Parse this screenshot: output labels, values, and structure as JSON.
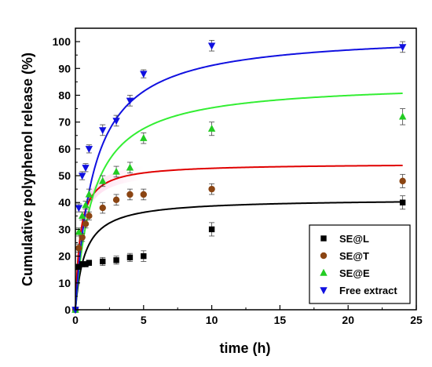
{
  "chart_data": {
    "type": "scatter",
    "title": "",
    "xlabel": "time (h)",
    "ylabel": "Cumulative polyphenol release (%)",
    "xlim": [
      0,
      25
    ],
    "ylim": [
      0,
      105
    ],
    "xticks": [
      0,
      5,
      10,
      15,
      20,
      25
    ],
    "yticks": [
      0,
      10,
      20,
      30,
      40,
      50,
      60,
      70,
      80,
      90,
      100
    ],
    "legend_position": "bottom-right",
    "grid": false,
    "series": [
      {
        "name": "SE@L",
        "color": "#000000",
        "marker": "square",
        "x": [
          0,
          0.25,
          0.5,
          0.75,
          1,
          2,
          3,
          4,
          5,
          10,
          24
        ],
        "y": [
          0,
          16,
          17,
          17,
          17.5,
          18,
          18.5,
          19.5,
          20,
          30,
          40
        ],
        "err": [
          0,
          1,
          1,
          1,
          1,
          1.5,
          1.5,
          1.5,
          2,
          2.5,
          2.5
        ],
        "fit_color": "#000000",
        "fit": {
          "a": 41.4,
          "b": 0.7
        }
      },
      {
        "name": "SE@T",
        "color": "#8b4513",
        "marker": "circle",
        "x": [
          0,
          0.25,
          0.5,
          0.75,
          1,
          2,
          3,
          4,
          5,
          10,
          24
        ],
        "y": [
          0,
          23,
          27,
          32,
          35,
          38,
          41,
          43,
          43,
          45,
          48
        ],
        "err": [
          0,
          1.5,
          1.5,
          1.5,
          1.5,
          2,
          2,
          2,
          2,
          2,
          2.5
        ],
        "fit_color": "#e00000",
        "fit": {
          "a": 54.6,
          "b": 0.35
        }
      },
      {
        "name": "SE@E",
        "color": "#22cc22",
        "marker": "triangle-up",
        "x": [
          0,
          0.25,
          0.5,
          0.75,
          1,
          2,
          3,
          4,
          5,
          10,
          24
        ],
        "y": [
          0,
          29,
          35,
          39,
          43,
          48,
          51.5,
          53,
          64,
          67.5,
          72
        ],
        "err": [
          0,
          1.5,
          1.5,
          1.5,
          2,
          2,
          2,
          2,
          2,
          2.5,
          3
        ],
        "fit_color": "#33ee33",
        "fit": {
          "a": 85.1,
          "b": 1.3
        }
      },
      {
        "name": "Free extract",
        "color": "#1010e0",
        "marker": "triangle-down",
        "x": [
          0,
          0.25,
          0.5,
          0.75,
          1,
          2,
          3,
          4,
          5,
          10,
          24
        ],
        "y": [
          0,
          38,
          50,
          53,
          60,
          67,
          70.5,
          78,
          88,
          98.5,
          98
        ],
        "err": [
          0,
          1.5,
          1.5,
          1.5,
          1.5,
          2,
          2,
          2,
          1.5,
          2,
          2
        ],
        "fit_color": "#1010e0",
        "fit": {
          "a": 103.4,
          "b": 1.35
        }
      }
    ]
  }
}
